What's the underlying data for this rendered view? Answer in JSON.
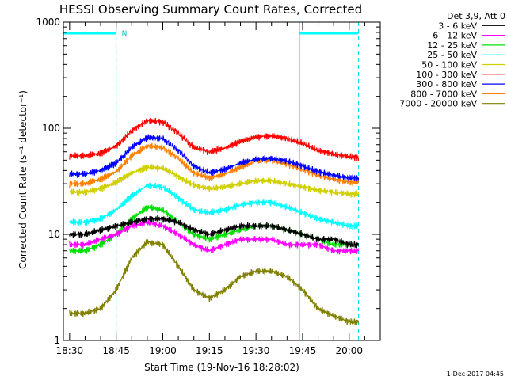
{
  "chart_data": {
    "type": "line",
    "title": "HESSI Observing Summary Count Rates, Corrected",
    "xlabel": "Start Time (19-Nov-16 18:28:02)",
    "ylabel": "Corrected Count Rate (s⁻¹ detector⁻¹)",
    "ylog": true,
    "ylim": [
      1,
      1000
    ],
    "xlim_minutes_from_1830": [
      -2,
      100
    ],
    "yticks": [
      {
        "value": 1,
        "label": "1"
      },
      {
        "value": 10,
        "label": "10"
      },
      {
        "value": 100,
        "label": "100"
      },
      {
        "value": 1000,
        "label": "1000"
      }
    ],
    "xticks": [
      {
        "minutes": 0,
        "label": "18:30"
      },
      {
        "minutes": 15,
        "label": "18:45"
      },
      {
        "minutes": 30,
        "label": "19:00"
      },
      {
        "minutes": 45,
        "label": "19:15"
      },
      {
        "minutes": 60,
        "label": "19:30"
      },
      {
        "minutes": 75,
        "label": "19:45"
      },
      {
        "minutes": 90,
        "label": "20:00"
      }
    ],
    "x_minutes": [
      0,
      5,
      10,
      15,
      20,
      25,
      30,
      35,
      40,
      45,
      50,
      55,
      60,
      65,
      70,
      75,
      80,
      85,
      90,
      93
    ],
    "legend_header": "Det 3,9, Att 0",
    "series": [
      {
        "name": "3 - 6 keV",
        "color": "#000000",
        "values": [
          10,
          10,
          11,
          12,
          13,
          14,
          14,
          13,
          11,
          10,
          11,
          12,
          12,
          12,
          11,
          10,
          9,
          9,
          8,
          8
        ]
      },
      {
        "name": "6 - 12 keV",
        "color": "#ff00ff",
        "values": [
          8,
          8,
          9,
          10,
          12,
          13,
          12,
          10,
          8,
          7,
          8,
          9,
          9,
          9,
          8,
          8,
          8,
          7,
          7,
          7
        ]
      },
      {
        "name": "12 - 25 keV",
        "color": "#00e000",
        "values": [
          7,
          7,
          8,
          10,
          14,
          18,
          17,
          13,
          10,
          9,
          10,
          11,
          12,
          12,
          11,
          10,
          9,
          8,
          8,
          8
        ]
      },
      {
        "name": "25 - 50 keV",
        "color": "#00ffff",
        "values": [
          13,
          13,
          14,
          17,
          23,
          29,
          28,
          22,
          17,
          16,
          17,
          19,
          20,
          20,
          18,
          16,
          14,
          13,
          12,
          12
        ]
      },
      {
        "name": "50 - 100 keV",
        "color": "#d0d000",
        "values": [
          25,
          25,
          27,
          31,
          38,
          43,
          42,
          35,
          29,
          27,
          28,
          30,
          32,
          32,
          30,
          28,
          26,
          25,
          24,
          24
        ]
      },
      {
        "name": "100 - 300 keV",
        "color": "#ff0000",
        "values": [
          55,
          55,
          58,
          68,
          95,
          118,
          115,
          90,
          66,
          60,
          65,
          75,
          83,
          85,
          80,
          72,
          62,
          57,
          54,
          53
        ]
      },
      {
        "name": "300 - 800 keV",
        "color": "#0000ff",
        "values": [
          37,
          37,
          40,
          47,
          66,
          82,
          80,
          62,
          44,
          38,
          41,
          47,
          51,
          52,
          49,
          44,
          39,
          36,
          34,
          34
        ]
      },
      {
        "name": "800 - 7000 keV",
        "color": "#ff8000",
        "values": [
          30,
          30,
          33,
          39,
          55,
          68,
          66,
          52,
          38,
          34,
          37,
          43,
          49,
          50,
          46,
          41,
          36,
          33,
          31,
          31
        ]
      },
      {
        "name": "7000 - 20000 keV",
        "color": "#808000",
        "values": [
          1.8,
          1.8,
          2,
          3,
          6,
          8.5,
          8,
          5,
          3,
          2.5,
          3,
          4,
          4.5,
          4.5,
          4,
          3,
          2,
          1.7,
          1.5,
          1.5
        ]
      }
    ],
    "night_intervals_minutes": [
      [
        -2,
        15
      ],
      [
        74,
        93
      ]
    ],
    "saa_markers_minutes": [
      15,
      93
    ],
    "night_flag_label": "N",
    "footer_date": "1-Dec-2017 04:45"
  }
}
